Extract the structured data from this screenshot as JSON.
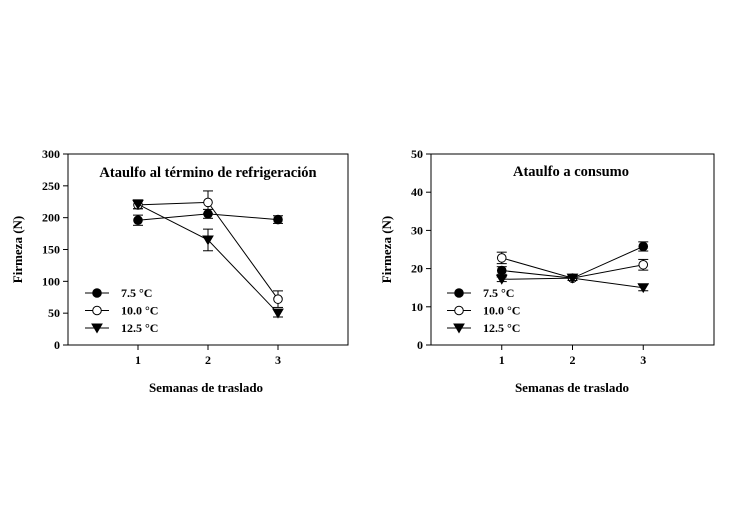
{
  "chart_data": [
    {
      "type": "line",
      "title": "Ataulfo al término de refrigeración",
      "xlabel": "Semanas de traslado",
      "ylabel": "Firmeza (N)",
      "x": [
        1,
        2,
        3
      ],
      "x_ticks": [
        "1",
        "2",
        "3"
      ],
      "xlim": [
        0,
        4
      ],
      "ylim": [
        0,
        300
      ],
      "y_ticks": [
        "0",
        "50",
        "100",
        "150",
        "200",
        "250",
        "300"
      ],
      "grid": false,
      "legend_position": "bottom-left",
      "series": [
        {
          "name": "7.5 °C",
          "marker": "filled-circle",
          "values": [
            196,
            206,
            197
          ],
          "errors": [
            8,
            7,
            6
          ]
        },
        {
          "name": "10.0 °C",
          "marker": "open-circle",
          "values": [
            220,
            224,
            72
          ],
          "errors": [
            6,
            18,
            13
          ]
        },
        {
          "name": "12.5 °C",
          "marker": "filled-triangle-down",
          "values": [
            221,
            165,
            50
          ],
          "errors": [
            7,
            17,
            6
          ]
        }
      ]
    },
    {
      "type": "line",
      "title": "Ataulfo a consumo",
      "xlabel": "Semanas de traslado",
      "ylabel": "Firmeza (N)",
      "x": [
        1,
        2,
        3
      ],
      "x_ticks": [
        "1",
        "2",
        "3"
      ],
      "xlim": [
        0,
        4
      ],
      "ylim": [
        0,
        50
      ],
      "y_ticks": [
        "0",
        "10",
        "20",
        "30",
        "40",
        "50"
      ],
      "grid": false,
      "legend_position": "bottom-left",
      "series": [
        {
          "name": "7.5 °C",
          "marker": "filled-circle",
          "values": [
            19.5,
            17.5,
            25.8
          ],
          "errors": [
            1.0,
            0.6,
            1.2
          ]
        },
        {
          "name": "10.0 °C",
          "marker": "open-circle",
          "values": [
            22.8,
            17.5,
            21.0
          ],
          "errors": [
            1.5,
            0.6,
            1.4
          ]
        },
        {
          "name": "12.5 °C",
          "marker": "filled-triangle-down",
          "values": [
            17.2,
            17.5,
            15.0
          ],
          "errors": [
            0.6,
            0.6,
            0.8
          ]
        }
      ]
    }
  ]
}
